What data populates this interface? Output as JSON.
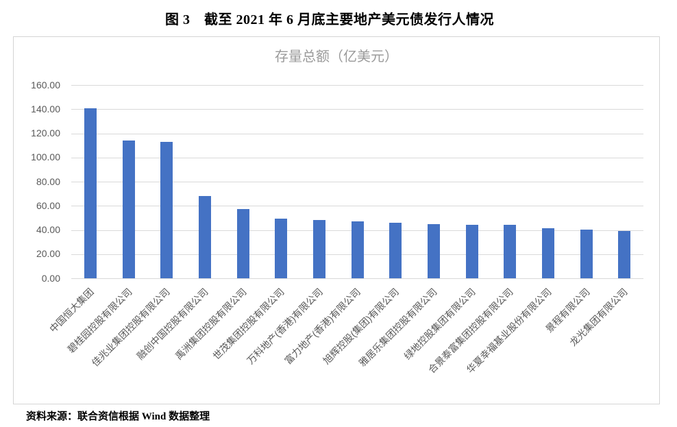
{
  "page": {
    "title": "图 3　截至 2021 年 6 月底主要地产美元债发行人情况",
    "source_note": "资料来源：联合资信根据 Wind 数据整理"
  },
  "chart_data": {
    "type": "bar",
    "title": "存量总额（亿美元）",
    "categories": [
      "中国恒大集团",
      "碧桂园控股有限公司",
      "佳兆业集团控股有限公司",
      "融创中国控股有限公司",
      "禹洲集团控股有限公司",
      "世茂集团控股有限公司",
      "万科地产(香港)有限公司",
      "富力地产(香港)有限公司",
      "旭辉控股(集团)有限公司",
      "雅居乐集团控股有限公司",
      "绿地控股集团有限公司",
      "合景泰富集团控股有限公司",
      "华夏幸福基业股份有限公司",
      "景程有限公司",
      "龙光集团有限公司"
    ],
    "values": [
      141.0,
      114.3,
      113.2,
      68.0,
      57.1,
      49.5,
      48.2,
      47.2,
      45.8,
      44.7,
      44.5,
      44.0,
      41.3,
      40.1,
      39.4
    ],
    "ylim": [
      0,
      160
    ],
    "ytick_interval": 20,
    "ytick_labels": [
      "0.00",
      "20.00",
      "40.00",
      "60.00",
      "80.00",
      "100.00",
      "120.00",
      "140.00",
      "160.00"
    ],
    "grid": true,
    "legend": "none",
    "xlabel": "",
    "ylabel": "",
    "label_rotation_deg": 45,
    "bar_color": "#4472c4",
    "gridline_color": "#d9d9d9",
    "axis_text_color": "#595959",
    "title_color": "#9a9a9a",
    "chart_border_color": "#d4d4d4"
  }
}
